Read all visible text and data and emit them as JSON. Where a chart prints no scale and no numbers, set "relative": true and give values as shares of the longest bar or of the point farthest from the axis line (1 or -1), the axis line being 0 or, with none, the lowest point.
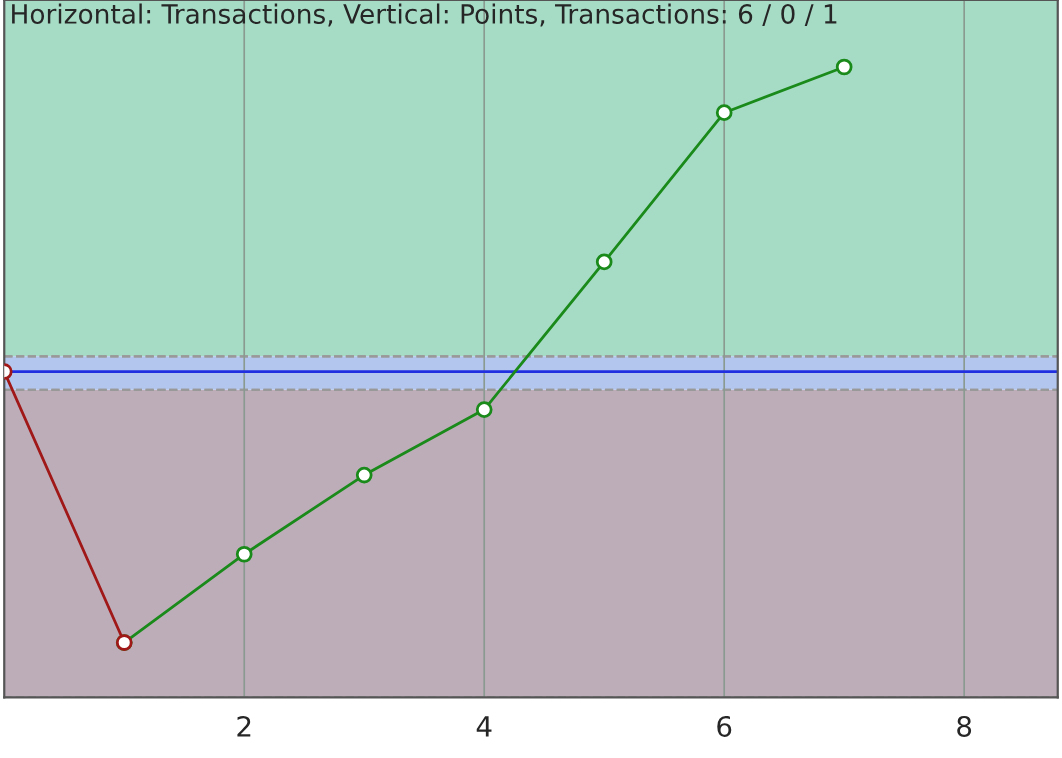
{
  "chart_data": {
    "type": "line",
    "title": "Horizontal: Transactions, Vertical: Points, Transactions: 6 / 0 / 1",
    "relative": true,
    "series": [
      {
        "color": "#1a8a1a",
        "x": [
          1,
          2,
          3,
          4,
          5,
          6,
          7
        ],
        "values": [
          -0.89,
          -0.6,
          -0.34,
          -0.125,
          0.36,
          0.85,
          1
        ]
      },
      {
        "color": "#a01818",
        "x": [
          0,
          1
        ],
        "values": [
          0,
          -0.89
        ]
      }
    ],
    "xlim": [
      0,
      8.78
    ],
    "xticks": [
      2,
      4,
      6,
      8
    ],
    "grid": "x",
    "marker": "circle",
    "bands": [
      {
        "axis": "y",
        "from": 0.05,
        "to": 1.22,
        "color": "#a6dcc6"
      },
      {
        "axis": "y",
        "from": -1.07,
        "to": -0.06,
        "color": "#bcadb9"
      },
      {
        "axis": "y",
        "from": -0.06,
        "to": 0.05,
        "color": "#b3c6ee"
      }
    ],
    "ref_lines": [
      {
        "axis": "y",
        "value": 0,
        "color": "#2030e0"
      }
    ]
  }
}
